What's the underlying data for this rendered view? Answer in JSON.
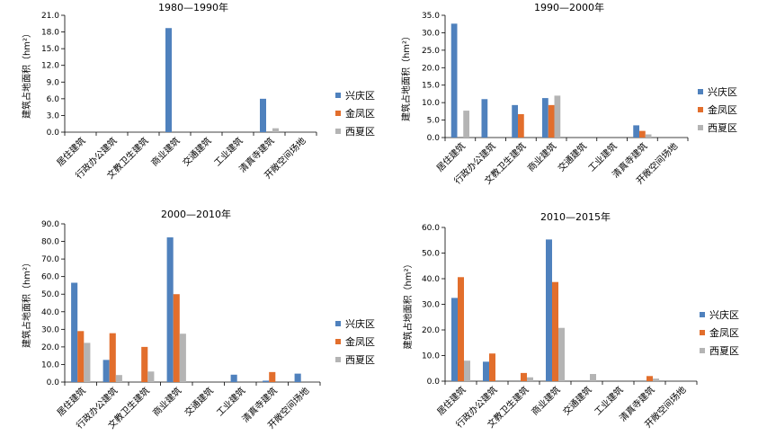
{
  "colors": {
    "兴庆区": "#4f81bd",
    "金凤区": "#e26e2c",
    "西夏区": "#b4b4b4"
  },
  "chart_data": [
    {
      "type": "bar",
      "title": "1980—1990年",
      "xlabel": "",
      "ylabel": "建筑占地面积（hm²）",
      "ylim": [
        0,
        21
      ],
      "yticks": [
        "0.0",
        "3.0",
        "6.0",
        "9.0",
        "12.0",
        "15.0",
        "18.0",
        "21.0"
      ],
      "categories": [
        "居住建筑",
        "行政办公建筑",
        "文教卫生建筑",
        "商业建筑",
        "交通建筑",
        "工业建筑",
        "清真寺建筑",
        "开敞空间场地"
      ],
      "series": [
        {
          "name": "兴庆区",
          "values": [
            0,
            0,
            0,
            18.7,
            0,
            0,
            6.0,
            0
          ]
        },
        {
          "name": "金凤区",
          "values": [
            0,
            0,
            0,
            0,
            0,
            0,
            0,
            0
          ]
        },
        {
          "name": "西夏区",
          "values": [
            0,
            0,
            0,
            0,
            0,
            0,
            0.7,
            0
          ]
        }
      ],
      "legend": "right"
    },
    {
      "type": "bar",
      "title": "1990—2000年",
      "xlabel": "",
      "ylabel": "建筑占地面积（hm²）",
      "ylim": [
        0,
        35
      ],
      "yticks": [
        "0.0",
        "5.0",
        "10.0",
        "15.0",
        "20.0",
        "25.0",
        "30.0",
        "35.0"
      ],
      "categories": [
        "居住建筑",
        "行政办公建筑",
        "文教卫生建筑",
        "商业建筑",
        "交通建筑",
        "工业建筑",
        "清真寺建筑",
        "开敞空间场地"
      ],
      "series": [
        {
          "name": "兴庆区",
          "values": [
            32.6,
            11.0,
            9.3,
            11.3,
            0,
            0,
            3.5,
            0
          ]
        },
        {
          "name": "金凤区",
          "values": [
            0,
            0,
            6.7,
            9.3,
            0,
            0,
            1.9,
            0
          ]
        },
        {
          "name": "西夏区",
          "values": [
            7.7,
            0,
            0,
            12.0,
            0,
            0,
            0.9,
            0
          ]
        }
      ],
      "legend": "right"
    },
    {
      "type": "bar",
      "title": "2000—2010年",
      "xlabel": "",
      "ylabel": "建筑占地面积（hm²）",
      "ylim": [
        0,
        90
      ],
      "yticks": [
        "0.0",
        "10.0",
        "20.0",
        "30.0",
        "40.0",
        "50.0",
        "60.0",
        "70.0",
        "80.0",
        "90.0"
      ],
      "categories": [
        "居住建筑",
        "行政办公建筑",
        "文教卫生建筑",
        "商业建筑",
        "交通建筑",
        "工业建筑",
        "清真寺建筑",
        "开敞空间场地"
      ],
      "series": [
        {
          "name": "兴庆区",
          "values": [
            56.5,
            12.6,
            0,
            82.3,
            0,
            4.2,
            0.8,
            4.8
          ]
        },
        {
          "name": "金凤区",
          "values": [
            29.0,
            27.8,
            20.0,
            50.0,
            0,
            0,
            5.7,
            0
          ]
        },
        {
          "name": "西夏区",
          "values": [
            22.3,
            4.0,
            6.0,
            27.5,
            0,
            0,
            0,
            0
          ]
        }
      ],
      "legend": "right"
    },
    {
      "type": "bar",
      "title": "2010—2015年",
      "xlabel": "",
      "ylabel": "建筑占地面积（hm²）",
      "ylim": [
        0,
        60
      ],
      "yticks": [
        "0.0",
        "10.0",
        "20.0",
        "30.0",
        "40.0",
        "50.0",
        "60.0"
      ],
      "categories": [
        "居住建筑",
        "行政办公建筑",
        "文教卫生建筑",
        "商业建筑",
        "交通建筑",
        "工业建筑",
        "清真寺建筑",
        "开敞空间场地"
      ],
      "series": [
        {
          "name": "兴庆区",
          "values": [
            32.5,
            7.6,
            0,
            55.3,
            0,
            0,
            0,
            0
          ]
        },
        {
          "name": "金凤区",
          "values": [
            40.6,
            10.8,
            3.2,
            38.7,
            0,
            0,
            2.0,
            0
          ]
        },
        {
          "name": "西夏区",
          "values": [
            8.0,
            0,
            1.5,
            20.8,
            2.8,
            0,
            1.0,
            0
          ]
        }
      ],
      "legend": "right"
    }
  ]
}
